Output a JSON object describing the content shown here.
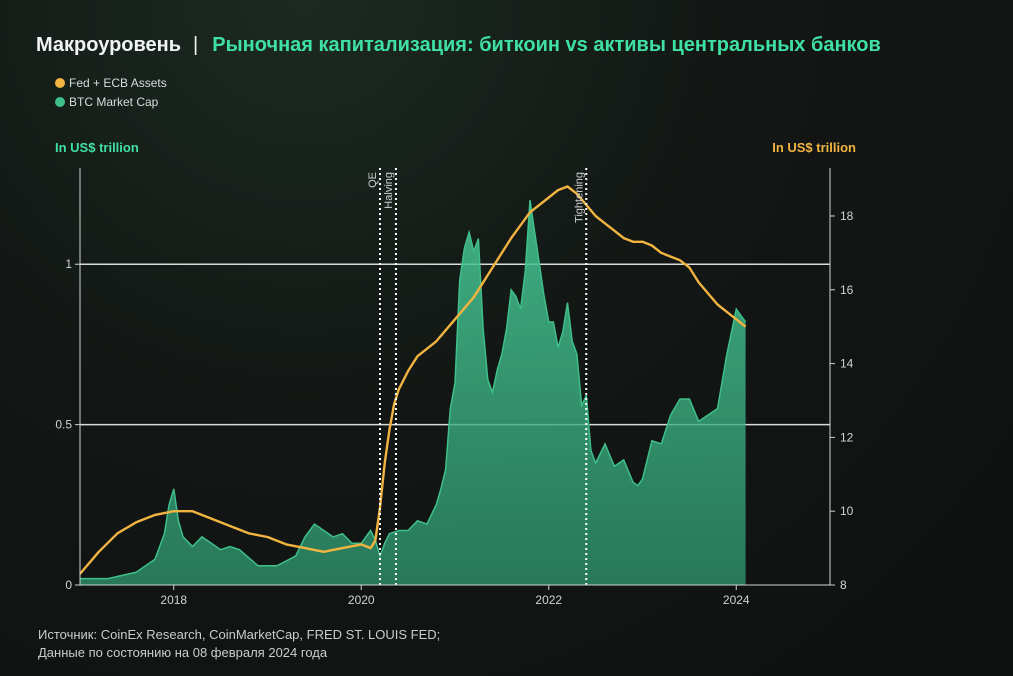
{
  "header": {
    "brand": "Макроуровень",
    "separator": "|",
    "title": "Рыночная капитализация: биткоин vs активы центральных банков"
  },
  "legend": [
    {
      "label": "Fed + ECB Assets",
      "color": "#f2b441"
    },
    {
      "label": "BTC Market Cap",
      "color": "#3fbf8a"
    }
  ],
  "axis_units": {
    "left": "In US$ trillion",
    "right": "In US$ trillion"
  },
  "source": {
    "line1": "Источник: CoinEx Research, CoinMarketCap, FRED ST. LOUIS FED;",
    "line2": "Данные по состоянию на 08 февраля 2024 года"
  },
  "chart_data": {
    "type": "area",
    "title": "Рыночная капитализация: биткоин vs активы центральных банков",
    "x_ticks": [
      "2018",
      "2020",
      "2022",
      "2024"
    ],
    "xlim": [
      2017.0,
      2025.0
    ],
    "y_left": {
      "label": "In US$ trillion",
      "ticks": [
        "0",
        "0.5",
        "1"
      ],
      "lim": [
        0,
        1.3
      ]
    },
    "y_right": {
      "label": "In US$ trillion",
      "ticks": [
        "8",
        "10",
        "12",
        "14",
        "16",
        "18"
      ],
      "lim": [
        8,
        19.3
      ]
    },
    "grid": "horizontal lines at left-axis 0.5 and 1",
    "events": [
      {
        "label": "QE",
        "x": 2020.2
      },
      {
        "label": "Halving",
        "x": 2020.37
      },
      {
        "label": "Tightening",
        "x": 2022.4
      }
    ],
    "series": [
      {
        "name": "BTC Market Cap",
        "axis": "left",
        "color": "#3fbf8a",
        "x": [
          2017.0,
          2017.3,
          2017.6,
          2017.8,
          2017.9,
          2017.95,
          2018.0,
          2018.05,
          2018.1,
          2018.2,
          2018.3,
          2018.4,
          2018.5,
          2018.6,
          2018.7,
          2018.9,
          2018.95,
          2019.1,
          2019.3,
          2019.4,
          2019.5,
          2019.55,
          2019.6,
          2019.7,
          2019.8,
          2019.9,
          2020.0,
          2020.1,
          2020.15,
          2020.2,
          2020.25,
          2020.3,
          2020.4,
          2020.5,
          2020.6,
          2020.7,
          2020.8,
          2020.85,
          2020.9,
          2020.95,
          2021.0,
          2021.05,
          2021.1,
          2021.15,
          2021.2,
          2021.25,
          2021.3,
          2021.35,
          2021.4,
          2021.45,
          2021.5,
          2021.55,
          2021.6,
          2021.65,
          2021.7,
          2021.75,
          2021.8,
          2021.85,
          2021.9,
          2021.95,
          2022.0,
          2022.05,
          2022.1,
          2022.15,
          2022.2,
          2022.25,
          2022.3,
          2022.35,
          2022.4,
          2022.45,
          2022.5,
          2022.6,
          2022.7,
          2022.8,
          2022.9,
          2022.95,
          2023.0,
          2023.1,
          2023.2,
          2023.3,
          2023.4,
          2023.5,
          2023.6,
          2023.7,
          2023.8,
          2023.9,
          2024.0,
          2024.05,
          2024.1
        ],
        "values": [
          0.02,
          0.02,
          0.04,
          0.08,
          0.16,
          0.25,
          0.3,
          0.2,
          0.15,
          0.12,
          0.15,
          0.13,
          0.11,
          0.12,
          0.11,
          0.06,
          0.06,
          0.06,
          0.09,
          0.15,
          0.19,
          0.18,
          0.17,
          0.15,
          0.16,
          0.13,
          0.13,
          0.17,
          0.14,
          0.09,
          0.13,
          0.16,
          0.17,
          0.17,
          0.2,
          0.19,
          0.25,
          0.3,
          0.36,
          0.55,
          0.63,
          0.95,
          1.05,
          1.1,
          1.04,
          1.08,
          0.8,
          0.64,
          0.6,
          0.67,
          0.72,
          0.8,
          0.92,
          0.9,
          0.86,
          0.98,
          1.2,
          1.1,
          1.0,
          0.9,
          0.82,
          0.82,
          0.74,
          0.79,
          0.88,
          0.76,
          0.72,
          0.56,
          0.59,
          0.42,
          0.38,
          0.44,
          0.37,
          0.39,
          0.32,
          0.31,
          0.33,
          0.45,
          0.44,
          0.53,
          0.58,
          0.58,
          0.51,
          0.53,
          0.55,
          0.72,
          0.86,
          0.84,
          0.82
        ]
      },
      {
        "name": "Fed + ECB Assets",
        "axis": "right",
        "color": "#f2b441",
        "x": [
          2017.0,
          2017.2,
          2017.4,
          2017.6,
          2017.8,
          2018.0,
          2018.2,
          2018.4,
          2018.6,
          2018.8,
          2019.0,
          2019.2,
          2019.4,
          2019.6,
          2019.8,
          2020.0,
          2020.1,
          2020.15,
          2020.2,
          2020.25,
          2020.3,
          2020.35,
          2020.4,
          2020.5,
          2020.6,
          2020.8,
          2021.0,
          2021.2,
          2021.4,
          2021.6,
          2021.8,
          2022.0,
          2022.1,
          2022.2,
          2022.3,
          2022.4,
          2022.5,
          2022.6,
          2022.7,
          2022.8,
          2022.9,
          2023.0,
          2023.1,
          2023.2,
          2023.3,
          2023.4,
          2023.5,
          2023.6,
          2023.7,
          2023.8,
          2023.9,
          2024.0,
          2024.1
        ],
        "values": [
          8.3,
          8.9,
          9.4,
          9.7,
          9.9,
          10.0,
          10.0,
          9.8,
          9.6,
          9.4,
          9.3,
          9.1,
          9.0,
          8.9,
          9.0,
          9.1,
          9.0,
          9.2,
          10.1,
          11.3,
          12.2,
          12.9,
          13.3,
          13.8,
          14.2,
          14.6,
          15.2,
          15.8,
          16.6,
          17.4,
          18.1,
          18.5,
          18.7,
          18.8,
          18.6,
          18.3,
          18.0,
          17.8,
          17.6,
          17.4,
          17.3,
          17.3,
          17.2,
          17.0,
          16.9,
          16.8,
          16.6,
          16.2,
          15.9,
          15.6,
          15.4,
          15.2,
          15.0
        ]
      }
    ]
  }
}
